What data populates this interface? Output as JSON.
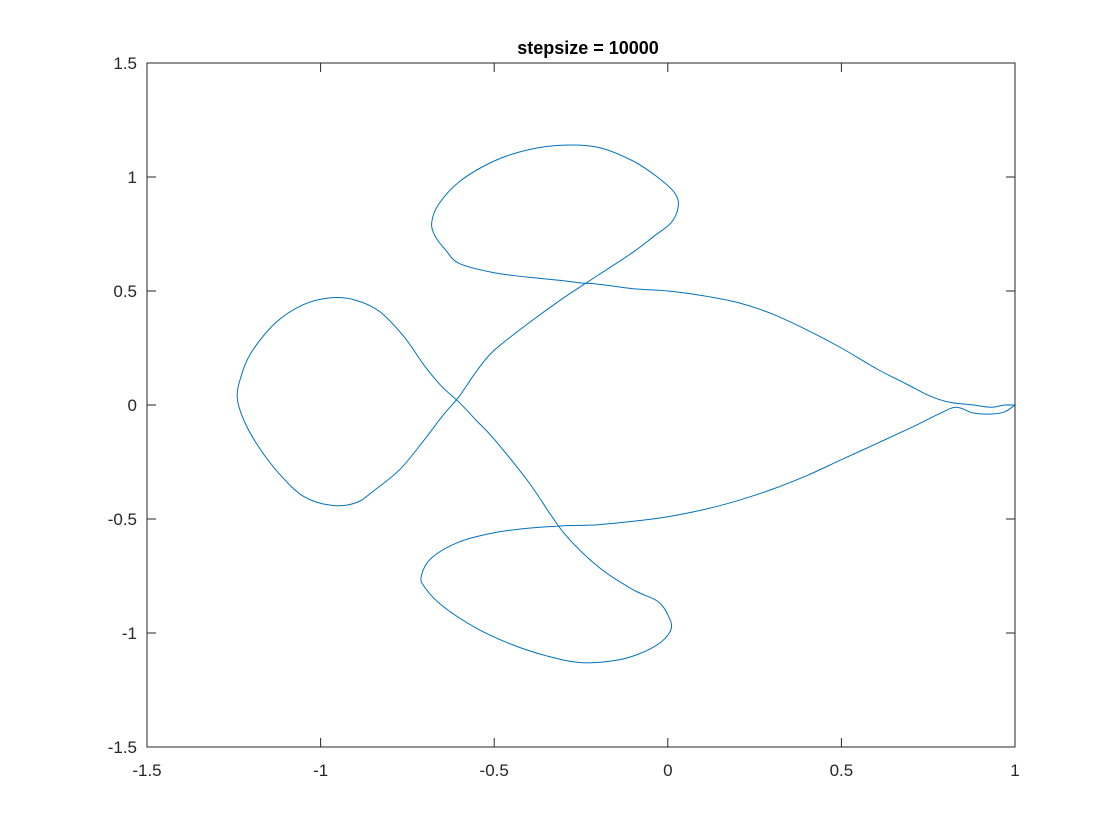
{
  "chart_data": {
    "type": "line",
    "title": "stepsize = 10000",
    "xlabel": "",
    "ylabel": "",
    "xlim": [
      -1.5,
      1
    ],
    "ylim": [
      -1.5,
      1.5
    ],
    "xticks": [
      -1.5,
      -1,
      -0.5,
      0,
      0.5,
      1
    ],
    "yticks": [
      -1.5,
      -1,
      -0.5,
      0,
      0.5,
      1,
      1.5
    ],
    "xtick_labels": [
      "-1.5",
      "-1",
      "-0.5",
      "0",
      "0.5",
      "1"
    ],
    "ytick_labels": [
      "-1.5",
      "-1",
      "-0.5",
      "0",
      "0.5",
      "1",
      "1.5"
    ],
    "grid": false,
    "box": true,
    "series": [
      {
        "color": "#0072BD",
        "x": [
          1.0,
          0.97,
          0.93,
          0.88,
          0.82,
          0.78,
          0.74,
          0.69,
          0.6,
          0.5,
          0.4,
          0.3,
          0.2,
          0.1,
          0.0,
          -0.1,
          -0.2,
          -0.25,
          -0.3,
          -0.4,
          -0.5,
          -0.6,
          -0.64,
          -0.67,
          -0.68,
          -0.66,
          -0.6,
          -0.5,
          -0.4,
          -0.3,
          -0.2,
          -0.1,
          -0.03,
          0.02,
          0.03,
          0.01,
          -0.04,
          -0.1,
          -0.2,
          -0.3,
          -0.4,
          -0.5,
          -0.55,
          -0.6,
          -0.65,
          -0.7,
          -0.77,
          -0.85,
          -0.9,
          -0.97,
          -1.05,
          -1.12,
          -1.18,
          -1.22,
          -1.24,
          -1.23,
          -1.2,
          -1.13,
          -1.05,
          -0.97,
          -0.9,
          -0.83,
          -0.76,
          -0.7,
          -0.65,
          -0.6,
          -0.55,
          -0.5,
          -0.4,
          -0.3,
          -0.2,
          -0.1,
          -0.03,
          0.0,
          0.01,
          -0.02,
          -0.08,
          -0.15,
          -0.25,
          -0.35,
          -0.45,
          -0.55,
          -0.65,
          -0.7,
          -0.71,
          -0.68,
          -0.6,
          -0.5,
          -0.4,
          -0.3,
          -0.2,
          -0.1,
          0.0,
          0.1,
          0.2,
          0.3,
          0.4,
          0.5,
          0.6,
          0.7,
          0.78,
          0.83,
          0.88,
          0.93,
          0.97,
          1.0
        ],
        "y": [
          0.0,
          0.0,
          -0.01,
          0.0,
          0.01,
          0.025,
          0.05,
          0.09,
          0.16,
          0.25,
          0.33,
          0.4,
          0.45,
          0.48,
          0.5,
          0.51,
          0.53,
          0.535,
          0.545,
          0.56,
          0.58,
          0.62,
          0.68,
          0.74,
          0.8,
          0.88,
          0.98,
          1.07,
          1.12,
          1.14,
          1.13,
          1.07,
          1.0,
          0.93,
          0.87,
          0.8,
          0.74,
          0.67,
          0.57,
          0.47,
          0.36,
          0.24,
          0.15,
          0.04,
          -0.05,
          -0.15,
          -0.28,
          -0.38,
          -0.43,
          -0.44,
          -0.4,
          -0.3,
          -0.18,
          -0.07,
          0.03,
          0.12,
          0.23,
          0.36,
          0.44,
          0.47,
          0.46,
          0.41,
          0.3,
          0.17,
          0.08,
          0.01,
          -0.07,
          -0.15,
          -0.34,
          -0.56,
          -0.71,
          -0.81,
          -0.86,
          -0.92,
          -0.98,
          -1.04,
          -1.09,
          -1.12,
          -1.13,
          -1.1,
          -1.05,
          -0.98,
          -0.88,
          -0.8,
          -0.75,
          -0.67,
          -0.6,
          -0.56,
          -0.54,
          -0.53,
          -0.525,
          -0.51,
          -0.49,
          -0.46,
          -0.42,
          -0.37,
          -0.31,
          -0.24,
          -0.17,
          -0.1,
          -0.04,
          -0.01,
          -0.035,
          -0.04,
          -0.03,
          0.0
        ]
      }
    ]
  }
}
